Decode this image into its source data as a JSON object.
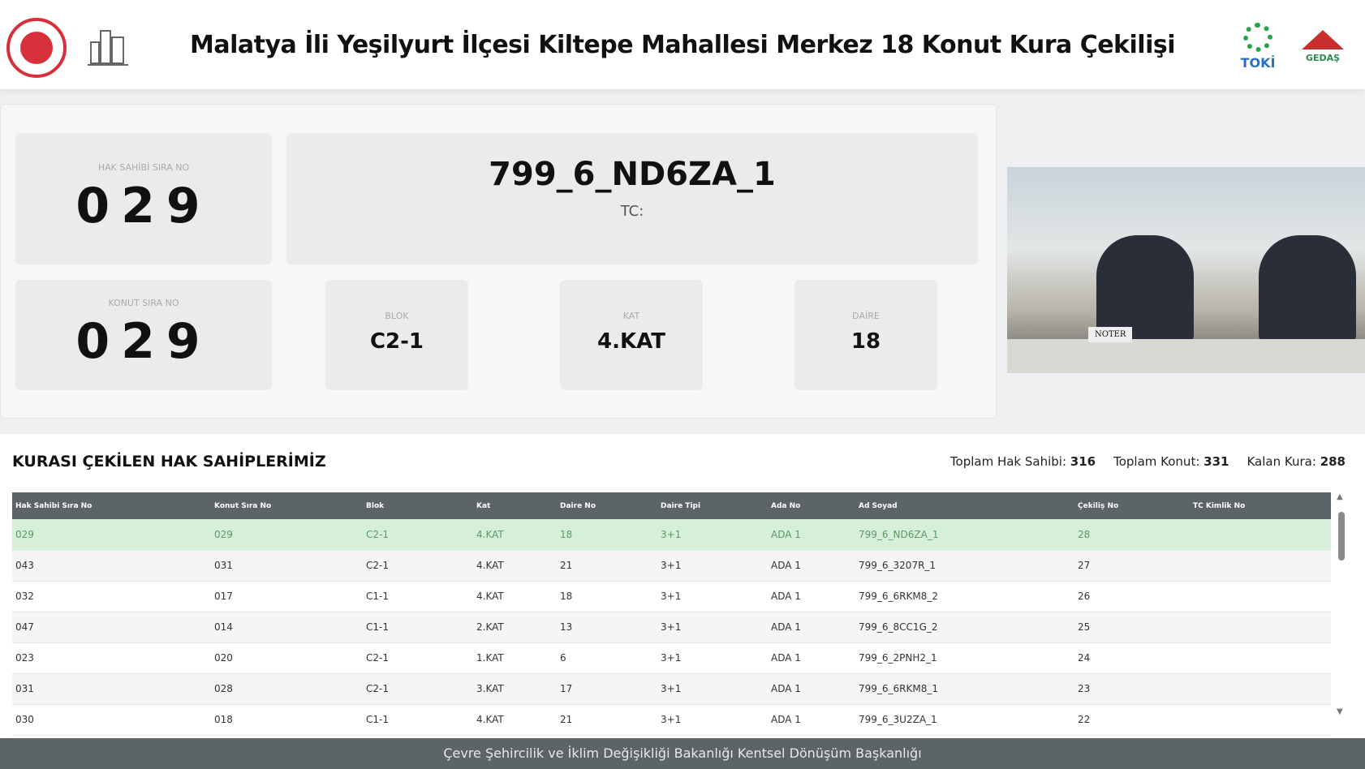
{
  "header": {
    "title": "Malatya İli Yeşilyurt İlçesi Kiltepe Mahallesi Merkez 18 Konut Kura Çekilişi",
    "logo_right_1": "TOKİ",
    "logo_right_2": "GEDAŞ"
  },
  "draw": {
    "hak_sahibi_label": "HAK SAHİBİ SIRA NO",
    "hak_sahibi_value": "029",
    "konut_label": "KONUT SIRA NO",
    "konut_value": "029",
    "name": "799_6_ND6ZA_1",
    "tc_label": "TC:",
    "blok_label": "BLOK",
    "blok_value": "C2-1",
    "kat_label": "KAT",
    "kat_value": "4.KAT",
    "daire_label": "DAİRE",
    "daire_value": "18"
  },
  "video": {
    "noter_sign": "NOTER"
  },
  "results": {
    "title": "KURASI ÇEKİLEN HAK SAHİPLERİMİZ",
    "stats": [
      {
        "label": "Toplam Hak Sahibi:",
        "value": "316"
      },
      {
        "label": "Toplam Konut:",
        "value": "331"
      },
      {
        "label": "Kalan Kura:",
        "value": "288"
      }
    ],
    "columns": [
      "Hak Sahibi Sıra No",
      "Konut Sıra No",
      "Blok",
      "Kat",
      "Daire No",
      "Daire Tipi",
      "Ada No",
      "Ad Soyad",
      "Çekiliş No",
      "TC Kimlik No"
    ],
    "rows": [
      [
        "029",
        "029",
        "C2-1",
        "4.KAT",
        "18",
        "3+1",
        "ADA 1",
        "799_6_ND6ZA_1",
        "28",
        ""
      ],
      [
        "043",
        "031",
        "C2-1",
        "4.KAT",
        "21",
        "3+1",
        "ADA 1",
        "799_6_3207R_1",
        "27",
        ""
      ],
      [
        "032",
        "017",
        "C1-1",
        "4.KAT",
        "18",
        "3+1",
        "ADA 1",
        "799_6_6RKM8_2",
        "26",
        ""
      ],
      [
        "047",
        "014",
        "C1-1",
        "2.KAT",
        "13",
        "3+1",
        "ADA 1",
        "799_6_8CC1G_2",
        "25",
        ""
      ],
      [
        "023",
        "020",
        "C2-1",
        "1.KAT",
        "6",
        "3+1",
        "ADA 1",
        "799_6_2PNH2_1",
        "24",
        ""
      ],
      [
        "031",
        "028",
        "C2-1",
        "3.KAT",
        "17",
        "3+1",
        "ADA 1",
        "799_6_6RKM8_1",
        "23",
        ""
      ],
      [
        "030",
        "018",
        "C1-1",
        "4.KAT",
        "21",
        "3+1",
        "ADA 1",
        "799_6_3U2ZA_1",
        "22",
        ""
      ]
    ]
  },
  "footer": {
    "text": "Çevre Şehircilik ve İklim Değişikliği Bakanlığı Kentsel Dönüşüm Başkanlığı"
  }
}
